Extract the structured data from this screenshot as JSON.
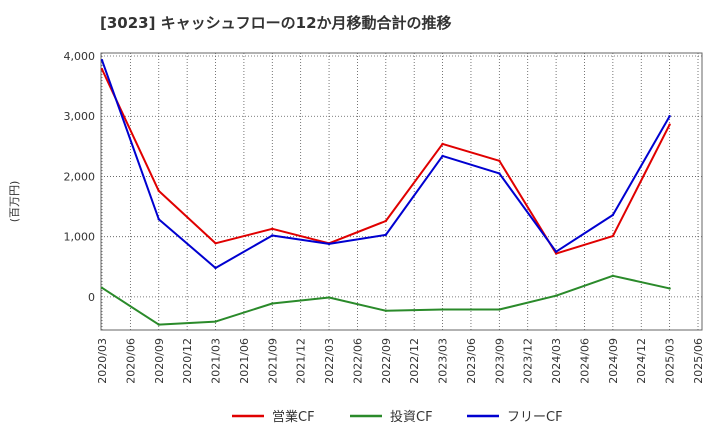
{
  "chart_data": {
    "type": "line",
    "title": "[3023]  キャッシュフローの12か月移動合計の推移",
    "xlabel": "",
    "ylabel": "(百万円)",
    "ylim": [
      -550,
      4050
    ],
    "yticks": [
      0,
      1000,
      2000,
      3000,
      4000
    ],
    "ytick_labels": [
      "0",
      "1,000",
      "2,000",
      "3,000",
      "4,000"
    ],
    "x_ticks": [
      "2020/03",
      "2020/06",
      "2020/09",
      "2020/12",
      "2021/03",
      "2021/06",
      "2021/09",
      "2021/12",
      "2022/03",
      "2022/06",
      "2022/09",
      "2022/12",
      "2023/03",
      "2023/06",
      "2023/09",
      "2023/12",
      "2024/03",
      "2024/06",
      "2024/09",
      "2024/12",
      "2025/03",
      "2025/06"
    ],
    "grid": true,
    "legend_position": "bottom",
    "series": [
      {
        "name": "営業CF",
        "color": "#e00000",
        "points": [
          {
            "x": "2020/03",
            "y": 3780
          },
          {
            "x": "2020/09",
            "y": 1760
          },
          {
            "x": "2021/03",
            "y": 890
          },
          {
            "x": "2021/09",
            "y": 1130
          },
          {
            "x": "2022/03",
            "y": 890
          },
          {
            "x": "2022/09",
            "y": 1260
          },
          {
            "x": "2023/03",
            "y": 2540
          },
          {
            "x": "2023/09",
            "y": 2260
          },
          {
            "x": "2024/03",
            "y": 720
          },
          {
            "x": "2024/09",
            "y": 1010
          },
          {
            "x": "2025/03",
            "y": 2860
          }
        ]
      },
      {
        "name": "投資CF",
        "color": "#2a8a2a",
        "points": [
          {
            "x": "2020/03",
            "y": 150
          },
          {
            "x": "2020/09",
            "y": -460
          },
          {
            "x": "2021/03",
            "y": -410
          },
          {
            "x": "2021/09",
            "y": -110
          },
          {
            "x": "2022/03",
            "y": -10
          },
          {
            "x": "2022/09",
            "y": -230
          },
          {
            "x": "2023/03",
            "y": -210
          },
          {
            "x": "2023/09",
            "y": -210
          },
          {
            "x": "2024/03",
            "y": 20
          },
          {
            "x": "2024/09",
            "y": 350
          },
          {
            "x": "2025/03",
            "y": 140
          }
        ]
      },
      {
        "name": "フリーCF",
        "color": "#0000d0",
        "points": [
          {
            "x": "2020/03",
            "y": 3930
          },
          {
            "x": "2020/09",
            "y": 1290
          },
          {
            "x": "2021/03",
            "y": 480
          },
          {
            "x": "2021/09",
            "y": 1020
          },
          {
            "x": "2022/03",
            "y": 880
          },
          {
            "x": "2022/09",
            "y": 1030
          },
          {
            "x": "2023/03",
            "y": 2340
          },
          {
            "x": "2023/09",
            "y": 2050
          },
          {
            "x": "2024/03",
            "y": 750
          },
          {
            "x": "2024/09",
            "y": 1360
          },
          {
            "x": "2025/03",
            "y": 3000
          }
        ]
      }
    ]
  }
}
